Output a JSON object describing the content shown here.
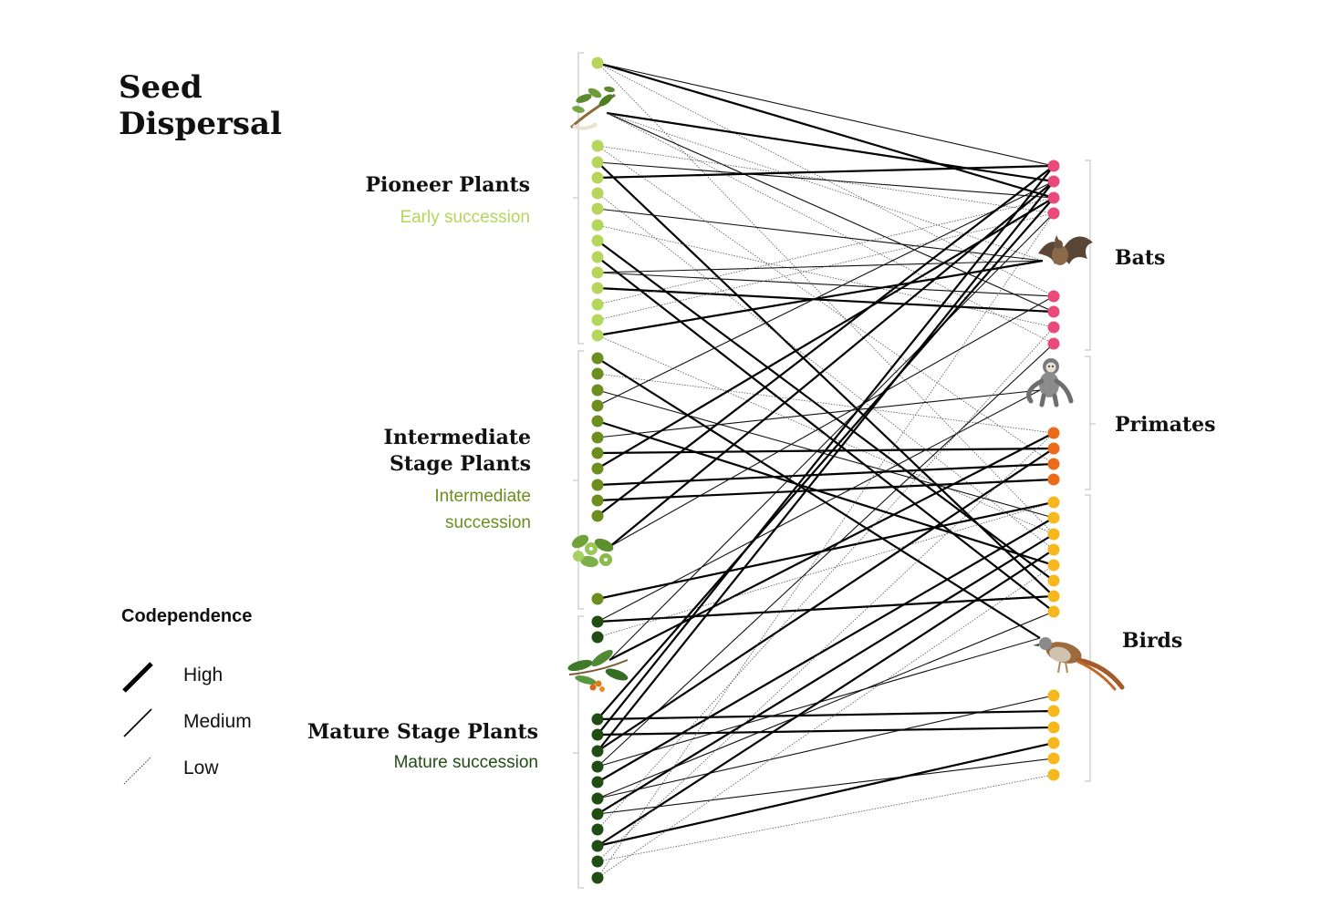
{
  "title_line1": "Seed",
  "title_line2": "Dispersal",
  "plant_groups": [
    {
      "key": "pioneer",
      "label_lines": [
        "Pioneer Plants"
      ],
      "sub_lines": [
        "Early succession"
      ],
      "color": "#b5d65a"
    },
    {
      "key": "intermediate",
      "label_lines": [
        "Intermediate",
        "Stage Plants"
      ],
      "sub_lines": [
        "Intermediate",
        "succession"
      ],
      "color": "#6b8e1e"
    },
    {
      "key": "mature",
      "label_lines": [
        "Mature Stage Plants"
      ],
      "sub_lines": [
        "Mature succession"
      ],
      "color": "#1f4d14"
    }
  ],
  "animal_groups": [
    {
      "key": "bats",
      "label": "Bats",
      "color": "#e94a79"
    },
    {
      "key": "primates",
      "label": "Primates",
      "color": "#ec6b1a"
    },
    {
      "key": "birds",
      "label": "Birds",
      "color": "#f6b81c"
    }
  ],
  "legend": {
    "title": "Codependence",
    "items": [
      {
        "label": "High",
        "level": "high"
      },
      {
        "label": "Medium",
        "level": "medium"
      },
      {
        "label": "Low",
        "level": "low"
      }
    ]
  },
  "icons": [
    "plant-sprig-icon",
    "plant-fruit-cluster-icon",
    "plant-berry-branch-icon",
    "bat-icon",
    "primate-icon",
    "bird-icon"
  ]
}
